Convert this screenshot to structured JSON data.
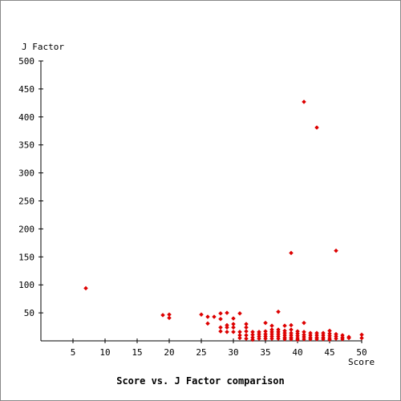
{
  "chart_data": {
    "type": "scatter",
    "title": "Score vs. J Factor comparison",
    "xlabel": "Score",
    "ylabel": "J Factor",
    "xlim": [
      0,
      50
    ],
    "ylim": [
      0,
      500
    ],
    "x_ticks": [
      5,
      10,
      15,
      20,
      25,
      30,
      35,
      40,
      45,
      50
    ],
    "y_ticks": [
      50,
      100,
      150,
      200,
      250,
      300,
      350,
      400,
      450,
      500
    ],
    "grid": false,
    "marker": "diamond",
    "colors": {
      "marker": "#dd0000",
      "axis": "#000000",
      "text": "#000000",
      "background": "#ffffff"
    },
    "series": [
      {
        "points": [
          [
            7,
            94
          ],
          [
            19,
            46
          ],
          [
            20,
            47
          ],
          [
            20,
            41
          ],
          [
            25,
            47
          ],
          [
            26,
            43
          ],
          [
            26,
            31
          ],
          [
            27,
            43
          ],
          [
            28,
            49
          ],
          [
            28,
            39
          ],
          [
            28,
            24
          ],
          [
            28,
            17
          ],
          [
            29,
            50
          ],
          [
            29,
            28
          ],
          [
            29,
            24
          ],
          [
            29,
            16
          ],
          [
            30,
            40
          ],
          [
            30,
            30
          ],
          [
            30,
            24
          ],
          [
            30,
            16
          ],
          [
            31,
            49
          ],
          [
            31,
            16
          ],
          [
            31,
            10
          ],
          [
            31,
            5
          ],
          [
            32,
            30
          ],
          [
            32,
            24
          ],
          [
            32,
            17
          ],
          [
            32,
            10
          ],
          [
            32,
            4
          ],
          [
            33,
            16
          ],
          [
            33,
            11
          ],
          [
            33,
            6
          ],
          [
            33,
            2
          ],
          [
            34,
            16
          ],
          [
            34,
            12
          ],
          [
            34,
            8
          ],
          [
            34,
            4
          ],
          [
            35,
            32
          ],
          [
            35,
            17
          ],
          [
            35,
            12
          ],
          [
            35,
            8
          ],
          [
            35,
            4
          ],
          [
            36,
            27
          ],
          [
            36,
            20
          ],
          [
            36,
            16
          ],
          [
            36,
            12
          ],
          [
            36,
            8
          ],
          [
            36,
            4
          ],
          [
            37,
            52
          ],
          [
            37,
            20
          ],
          [
            37,
            16
          ],
          [
            37,
            12
          ],
          [
            37,
            8
          ],
          [
            37,
            4
          ],
          [
            38,
            27
          ],
          [
            38,
            18
          ],
          [
            38,
            14
          ],
          [
            38,
            10
          ],
          [
            38,
            6
          ],
          [
            38,
            3
          ],
          [
            39,
            157
          ],
          [
            39,
            28
          ],
          [
            39,
            20
          ],
          [
            39,
            14
          ],
          [
            39,
            10
          ],
          [
            39,
            6
          ],
          [
            39,
            3
          ],
          [
            40,
            17
          ],
          [
            40,
            13
          ],
          [
            40,
            9
          ],
          [
            40,
            5
          ],
          [
            40,
            2
          ],
          [
            41,
            427
          ],
          [
            41,
            32
          ],
          [
            41,
            16
          ],
          [
            41,
            11
          ],
          [
            41,
            7
          ],
          [
            41,
            3
          ],
          [
            42,
            14
          ],
          [
            42,
            10
          ],
          [
            42,
            6
          ],
          [
            42,
            3
          ],
          [
            43,
            381
          ],
          [
            43,
            14
          ],
          [
            43,
            10
          ],
          [
            43,
            6
          ],
          [
            43,
            3
          ],
          [
            44,
            14
          ],
          [
            44,
            10
          ],
          [
            44,
            6
          ],
          [
            44,
            3
          ],
          [
            45,
            18
          ],
          [
            45,
            13
          ],
          [
            45,
            9
          ],
          [
            45,
            5
          ],
          [
            45,
            2
          ],
          [
            46,
            161
          ],
          [
            46,
            12
          ],
          [
            46,
            8
          ],
          [
            46,
            4
          ],
          [
            47,
            10
          ],
          [
            47,
            6
          ],
          [
            47,
            3
          ],
          [
            48,
            7
          ],
          [
            48,
            5
          ],
          [
            50,
            11
          ],
          [
            50,
            5
          ]
        ]
      }
    ]
  }
}
